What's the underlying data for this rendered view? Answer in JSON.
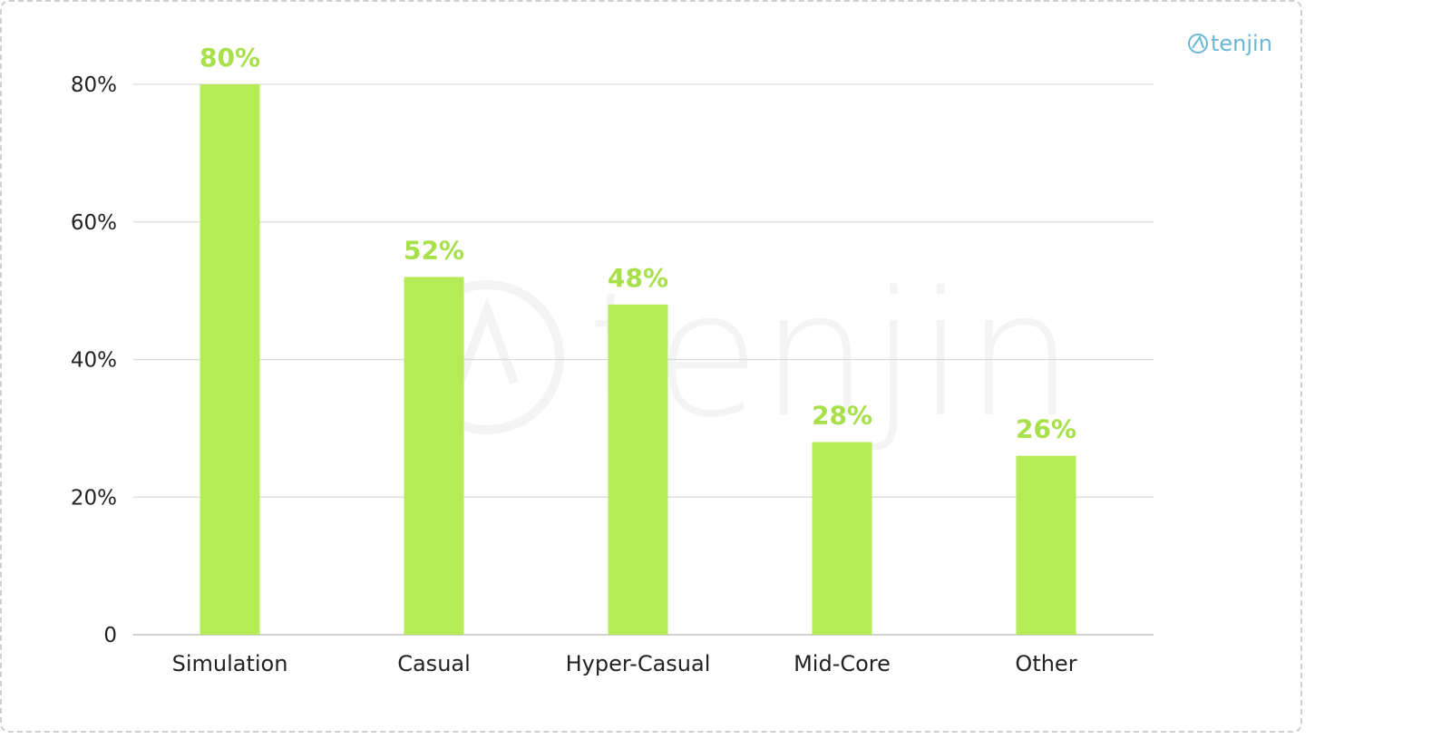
{
  "brand": {
    "logo_text": "tenjin",
    "watermark_text": "tenjin",
    "logo_color": "#6ab7d8",
    "watermark_color": "#f4f4f4"
  },
  "colors": {
    "bar": "#b5ec55",
    "data_label": "#a8e04a"
  },
  "chart_data": {
    "type": "bar",
    "categories": [
      "Simulation",
      "Casual",
      "Hyper-Casual",
      "Mid-Core",
      "Other"
    ],
    "values": [
      80,
      52,
      48,
      28,
      26
    ],
    "value_labels": [
      "80%",
      "52%",
      "48%",
      "28%",
      "26%"
    ],
    "ylim": [
      0,
      80
    ],
    "yticks": [
      0,
      20,
      40,
      60,
      80
    ],
    "ytick_labels": [
      "0",
      "20%",
      "40%",
      "60%",
      "80%"
    ],
    "grid": true,
    "legend": "none"
  }
}
